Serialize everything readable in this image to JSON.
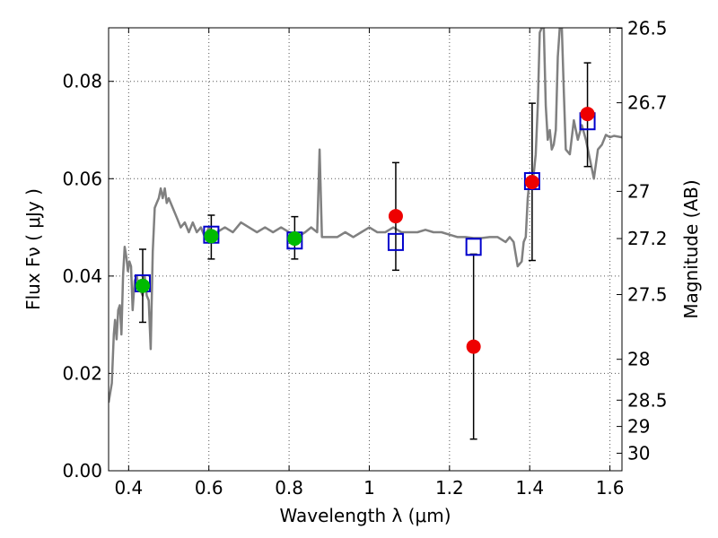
{
  "chart_data": {
    "type": "scatter",
    "xlabel": "Wavelength  λ (μm)",
    "ylabel": "Flux  Fν  ( μJy )",
    "ylabel_right": "Magnitude (AB)",
    "xlim": [
      0.35,
      1.63
    ],
    "ylim": [
      0.0,
      0.091
    ],
    "grid": true,
    "x_ticks": [
      0.4,
      0.6,
      0.8,
      1.0,
      1.2,
      1.4,
      1.6
    ],
    "x_tick_labels": [
      "0.4",
      "0.6",
      "0.8",
      "1",
      "1.2",
      "1.4",
      "1.6"
    ],
    "y_ticks": [
      0.0,
      0.02,
      0.04,
      0.06,
      0.08
    ],
    "y_tick_labels": [
      "0.00",
      "0.02",
      "0.04",
      "0.06",
      "0.08"
    ],
    "right_ticks": [
      {
        "label": "26.5",
        "flux": 0.0909
      },
      {
        "label": "26.7",
        "flux": 0.0756
      },
      {
        "label": "27",
        "flux": 0.0574
      },
      {
        "label": "27.2",
        "flux": 0.0477
      },
      {
        "label": "27.5",
        "flux": 0.0362
      },
      {
        "label": "28",
        "flux": 0.0229
      },
      {
        "label": "28.5",
        "flux": 0.0145
      },
      {
        "label": "29",
        "flux": 0.0091
      },
      {
        "label": "30",
        "flux": 0.0036
      }
    ],
    "series": [
      {
        "marker": "circle",
        "color": "#00bb00",
        "points": [
          {
            "x": 0.435,
            "y": 0.038,
            "err": [
              0.0305,
              0.0455
            ]
          },
          {
            "x": 0.606,
            "y": 0.0482,
            "err": [
              0.0435,
              0.0525
            ]
          },
          {
            "x": 0.814,
            "y": 0.0477,
            "err": [
              0.0435,
              0.0522
            ]
          }
        ]
      },
      {
        "marker": "circle",
        "color": "#ee0000",
        "points": [
          {
            "x": 1.066,
            "y": 0.0523,
            "err": [
              0.0412,
              0.0633
            ]
          },
          {
            "x": 1.26,
            "y": 0.0255,
            "err": [
              0.0065,
              0.0445
            ]
          },
          {
            "x": 1.406,
            "y": 0.0593,
            "err": [
              0.0432,
              0.0755
            ]
          },
          {
            "x": 1.544,
            "y": 0.0733,
            "err": [
              0.0625,
              0.0838
            ]
          }
        ]
      },
      {
        "marker": "square-open",
        "color": "#0000cc",
        "points": [
          {
            "x": 0.435,
            "y": 0.0385
          },
          {
            "x": 0.606,
            "y": 0.0485
          },
          {
            "x": 0.814,
            "y": 0.0473
          },
          {
            "x": 1.066,
            "y": 0.047
          },
          {
            "x": 1.26,
            "y": 0.046
          },
          {
            "x": 1.406,
            "y": 0.0595
          },
          {
            "x": 1.544,
            "y": 0.0718
          }
        ]
      },
      {
        "type": "line",
        "color": "#808080",
        "points": [
          [
            0.35,
            0.014
          ],
          [
            0.358,
            0.018
          ],
          [
            0.363,
            0.028
          ],
          [
            0.366,
            0.031
          ],
          [
            0.37,
            0.027
          ],
          [
            0.374,
            0.033
          ],
          [
            0.378,
            0.034
          ],
          [
            0.382,
            0.028
          ],
          [
            0.386,
            0.04
          ],
          [
            0.39,
            0.046
          ],
          [
            0.394,
            0.044
          ],
          [
            0.398,
            0.041
          ],
          [
            0.402,
            0.043
          ],
          [
            0.406,
            0.042
          ],
          [
            0.41,
            0.033
          ],
          [
            0.415,
            0.039
          ],
          [
            0.42,
            0.04
          ],
          [
            0.425,
            0.038
          ],
          [
            0.43,
            0.037
          ],
          [
            0.435,
            0.036
          ],
          [
            0.44,
            0.04
          ],
          [
            0.445,
            0.036
          ],
          [
            0.45,
            0.035
          ],
          [
            0.455,
            0.025
          ],
          [
            0.46,
            0.045
          ],
          [
            0.465,
            0.054
          ],
          [
            0.47,
            0.055
          ],
          [
            0.475,
            0.056
          ],
          [
            0.48,
            0.058
          ],
          [
            0.485,
            0.056
          ],
          [
            0.49,
            0.058
          ],
          [
            0.495,
            0.055
          ],
          [
            0.5,
            0.056
          ],
          [
            0.51,
            0.054
          ],
          [
            0.52,
            0.052
          ],
          [
            0.53,
            0.05
          ],
          [
            0.54,
            0.051
          ],
          [
            0.55,
            0.049
          ],
          [
            0.56,
            0.051
          ],
          [
            0.57,
            0.049
          ],
          [
            0.58,
            0.05
          ],
          [
            0.59,
            0.048
          ],
          [
            0.6,
            0.05
          ],
          [
            0.61,
            0.047
          ],
          [
            0.62,
            0.049
          ],
          [
            0.64,
            0.05
          ],
          [
            0.66,
            0.049
          ],
          [
            0.68,
            0.051
          ],
          [
            0.7,
            0.05
          ],
          [
            0.72,
            0.049
          ],
          [
            0.74,
            0.05
          ],
          [
            0.76,
            0.049
          ],
          [
            0.78,
            0.05
          ],
          [
            0.8,
            0.049
          ],
          [
            0.82,
            0.048
          ],
          [
            0.84,
            0.049
          ],
          [
            0.855,
            0.05
          ],
          [
            0.87,
            0.049
          ],
          [
            0.876,
            0.066
          ],
          [
            0.882,
            0.048
          ],
          [
            0.9,
            0.048
          ],
          [
            0.92,
            0.048
          ],
          [
            0.94,
            0.049
          ],
          [
            0.96,
            0.048
          ],
          [
            0.98,
            0.049
          ],
          [
            1.0,
            0.05
          ],
          [
            1.02,
            0.049
          ],
          [
            1.04,
            0.049
          ],
          [
            1.06,
            0.05
          ],
          [
            1.08,
            0.049
          ],
          [
            1.1,
            0.049
          ],
          [
            1.12,
            0.049
          ],
          [
            1.14,
            0.0495
          ],
          [
            1.16,
            0.049
          ],
          [
            1.18,
            0.049
          ],
          [
            1.2,
            0.0485
          ],
          [
            1.22,
            0.048
          ],
          [
            1.24,
            0.048
          ],
          [
            1.26,
            0.0478
          ],
          [
            1.28,
            0.0478
          ],
          [
            1.3,
            0.048
          ],
          [
            1.32,
            0.048
          ],
          [
            1.34,
            0.047
          ],
          [
            1.35,
            0.048
          ],
          [
            1.36,
            0.047
          ],
          [
            1.37,
            0.042
          ],
          [
            1.38,
            0.043
          ],
          [
            1.385,
            0.047
          ],
          [
            1.39,
            0.048
          ],
          [
            1.395,
            0.056
          ],
          [
            1.4,
            0.06
          ],
          [
            1.405,
            0.059
          ],
          [
            1.41,
            0.061
          ],
          [
            1.415,
            0.065
          ],
          [
            1.42,
            0.075
          ],
          [
            1.425,
            0.09
          ],
          [
            1.43,
            0.091
          ],
          [
            1.435,
            0.091
          ],
          [
            1.44,
            0.075
          ],
          [
            1.445,
            0.068
          ],
          [
            1.45,
            0.07
          ],
          [
            1.455,
            0.066
          ],
          [
            1.46,
            0.067
          ],
          [
            1.465,
            0.07
          ],
          [
            1.47,
            0.085
          ],
          [
            1.475,
            0.091
          ],
          [
            1.48,
            0.091
          ],
          [
            1.485,
            0.078
          ],
          [
            1.49,
            0.066
          ],
          [
            1.5,
            0.065
          ],
          [
            1.51,
            0.072
          ],
          [
            1.52,
            0.068
          ],
          [
            1.53,
            0.071
          ],
          [
            1.54,
            0.068
          ],
          [
            1.55,
            0.064
          ],
          [
            1.56,
            0.06
          ],
          [
            1.57,
            0.066
          ],
          [
            1.58,
            0.067
          ],
          [
            1.59,
            0.069
          ],
          [
            1.6,
            0.0685
          ],
          [
            1.61,
            0.0688
          ],
          [
            1.63,
            0.0685
          ]
        ]
      }
    ]
  }
}
